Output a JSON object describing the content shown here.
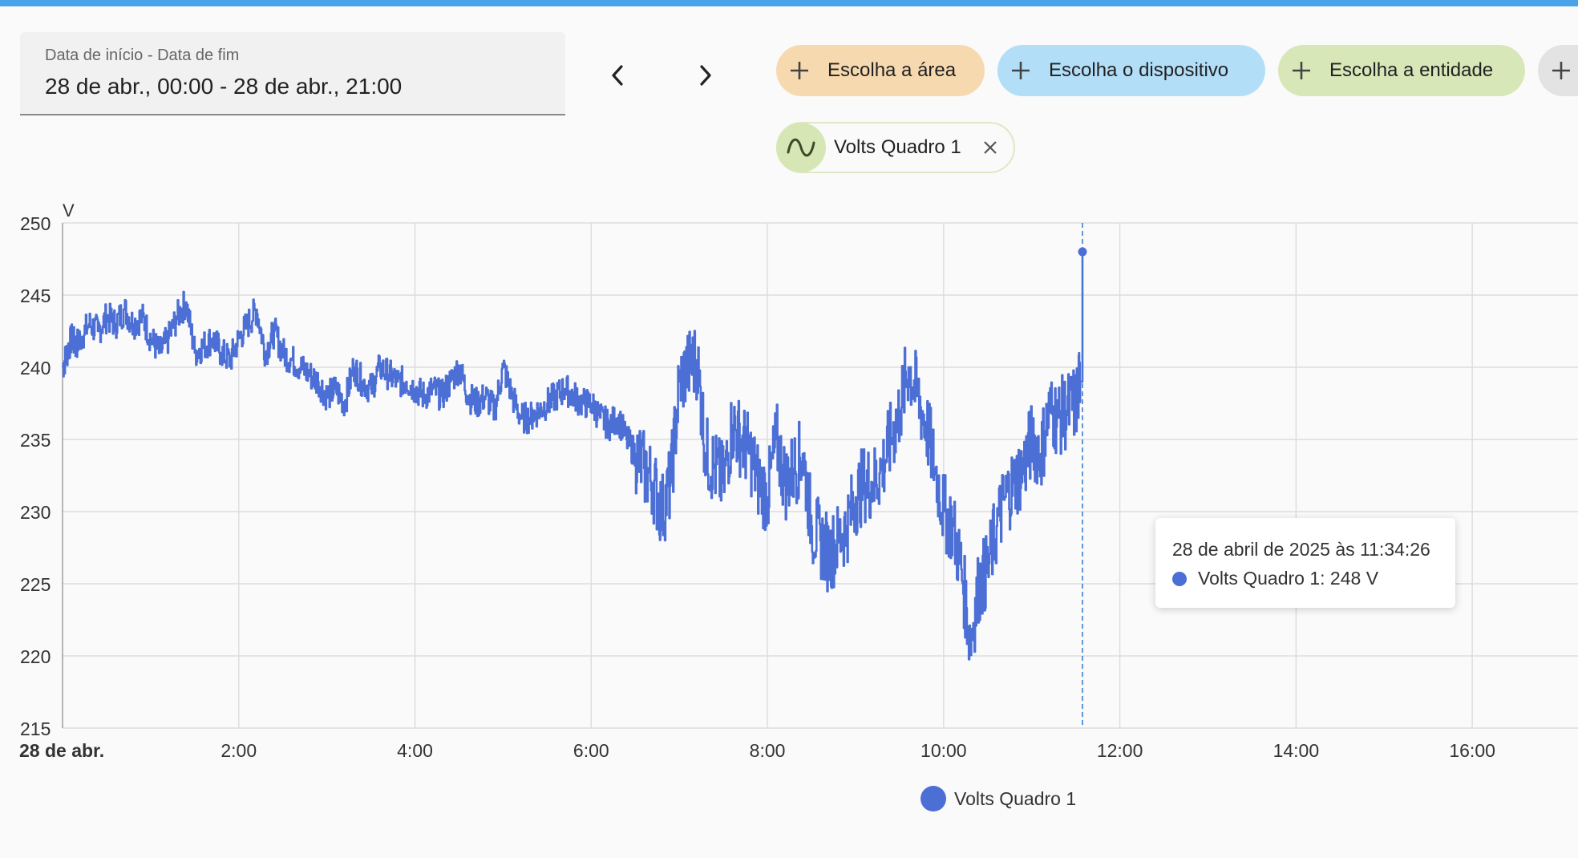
{
  "date_picker": {
    "label": "Data de início - Data de fim",
    "value": "28 de abr., 00:00 - 28 de abr., 21:00"
  },
  "nav": {
    "prev_icon": "chevron-left-icon",
    "next_icon": "chevron-right-icon"
  },
  "chips": {
    "area": "Escolha a área",
    "device": "Escolha o dispositivo",
    "entity": "Escolha a entidade",
    "area_color": "#f7d9b0",
    "device_color": "#b3def8",
    "entity_color": "#d7e7b8"
  },
  "selected_entity": {
    "name": "Volts Quadro 1",
    "icon": "sine-wave-icon"
  },
  "tooltip": {
    "title": "28 de abril de 2025 às 11:34:26",
    "value": "Volts Quadro 1: 248 V"
  },
  "legend": {
    "label": "Volts Quadro 1"
  },
  "colors": {
    "series": "#4c6fd6",
    "accent": "#4aa3e8"
  },
  "chart_data": {
    "type": "line",
    "unit": "V",
    "ylim": [
      215,
      250
    ],
    "yticks": [
      "250",
      "245",
      "240",
      "235",
      "230",
      "225",
      "220",
      "215"
    ],
    "xlim": [
      0,
      17.2
    ],
    "xticks": [
      {
        "x": 0,
        "label": "28 de abr."
      },
      {
        "x": 2,
        "label": "2:00"
      },
      {
        "x": 4,
        "label": "4:00"
      },
      {
        "x": 6,
        "label": "6:00"
      },
      {
        "x": 8,
        "label": "8:00"
      },
      {
        "x": 10,
        "label": "10:00"
      },
      {
        "x": 12,
        "label": "12:00"
      },
      {
        "x": 14,
        "label": "14:00"
      },
      {
        "x": 16,
        "label": "16:00"
      }
    ],
    "grid": true,
    "series": [
      {
        "name": "Volts Quadro 1",
        "x": [
          0.0,
          0.05,
          0.1,
          0.15,
          0.2,
          0.3,
          0.4,
          0.5,
          0.6,
          0.7,
          0.8,
          0.9,
          1.0,
          1.1,
          1.2,
          1.3,
          1.4,
          1.5,
          1.6,
          1.7,
          1.8,
          1.9,
          2.0,
          2.1,
          2.2,
          2.3,
          2.4,
          2.5,
          2.6,
          2.7,
          2.8,
          2.9,
          3.0,
          3.1,
          3.2,
          3.3,
          3.4,
          3.5,
          3.6,
          3.7,
          3.8,
          3.9,
          4.0,
          4.1,
          4.2,
          4.3,
          4.4,
          4.5,
          4.6,
          4.7,
          4.8,
          4.9,
          5.0,
          5.1,
          5.2,
          5.3,
          5.4,
          5.5,
          5.6,
          5.7,
          5.8,
          5.9,
          6.0,
          6.1,
          6.2,
          6.3,
          6.4,
          6.5,
          6.6,
          6.7,
          6.8,
          6.9,
          7.0,
          7.1,
          7.2,
          7.3,
          7.4,
          7.5,
          7.6,
          7.7,
          7.8,
          7.9,
          8.0,
          8.1,
          8.2,
          8.3,
          8.4,
          8.5,
          8.6,
          8.7,
          8.8,
          8.9,
          9.0,
          9.1,
          9.2,
          9.3,
          9.4,
          9.5,
          9.6,
          9.7,
          9.8,
          9.9,
          10.0,
          10.1,
          10.2,
          10.3,
          10.4,
          10.5,
          10.6,
          10.7,
          10.8,
          10.9,
          11.0,
          11.1,
          11.2,
          11.3,
          11.4,
          11.5,
          11.55,
          11.576
        ],
        "y": [
          240,
          241,
          242,
          241.5,
          242,
          243,
          242.5,
          243.5,
          243,
          244,
          243,
          243.5,
          242,
          241,
          242,
          243.5,
          244.5,
          241,
          241.5,
          242,
          241,
          240.5,
          242,
          243,
          244,
          241,
          242.5,
          241,
          240.5,
          240,
          239.5,
          239,
          238,
          238.5,
          237.5,
          240,
          239,
          238.5,
          240,
          239.5,
          239,
          239,
          238.5,
          238,
          238.5,
          238,
          239,
          240,
          238,
          237.5,
          238,
          237,
          240,
          238,
          236.5,
          236.5,
          237,
          237.5,
          238,
          238.5,
          238,
          237.5,
          237.5,
          236.5,
          236,
          236.5,
          235,
          234,
          233,
          232,
          230,
          232,
          239,
          240,
          240.5,
          234,
          233,
          232,
          236,
          235,
          234,
          232,
          231,
          235,
          232,
          233,
          234,
          229,
          228,
          227,
          228,
          229,
          231,
          232,
          232,
          233,
          235,
          237,
          240,
          238,
          236,
          233,
          230,
          229,
          226,
          221,
          225,
          226,
          229,
          231,
          232,
          233,
          235,
          234,
          237,
          236.5,
          237,
          237.5,
          239,
          248
        ]
      }
    ]
  }
}
